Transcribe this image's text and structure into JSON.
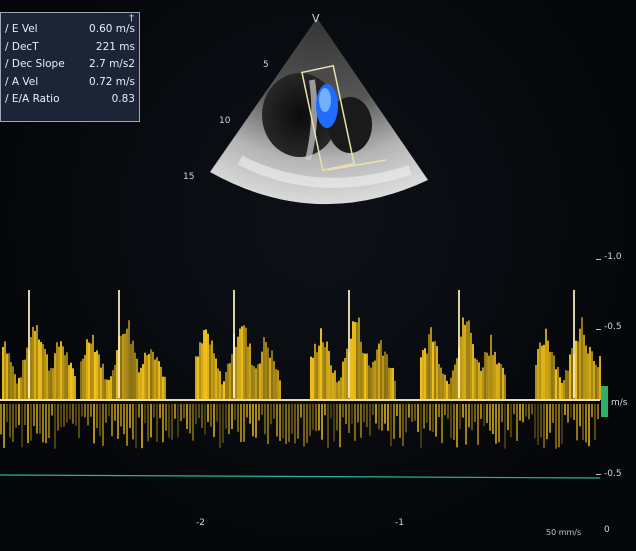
{
  "measurements": {
    "marker": "†",
    "rows": [
      {
        "label": "/ E Vel",
        "value": "0.60 m/s"
      },
      {
        "label": "/ DecT",
        "value": "221 ms"
      },
      {
        "label": "/ Dec Slope",
        "value": "2.7 m/s2"
      },
      {
        "label": "/ A Vel",
        "value": "0.72 m/s"
      },
      {
        "label": "/ E/A Ratio",
        "value": "0.83"
      }
    ]
  },
  "sector": {
    "apex_label": "V",
    "depth_labels": [
      "5",
      "10",
      "15"
    ],
    "colors": {
      "tissue": "#c8c8c8",
      "flow_blue": "#1f6cff",
      "box": "#e8e0b0"
    }
  },
  "doppler": {
    "scale_labels": [
      "-1.0",
      "-0.5",
      "m/s",
      "-0.5",
      "0"
    ],
    "time_labels": [
      "-2",
      "-1"
    ],
    "sweep_speed": "50 mm/s",
    "colors": {
      "spectrum": "#f2c21a",
      "baseline": "#e8e0b0",
      "line": "#1fb89a"
    }
  }
}
